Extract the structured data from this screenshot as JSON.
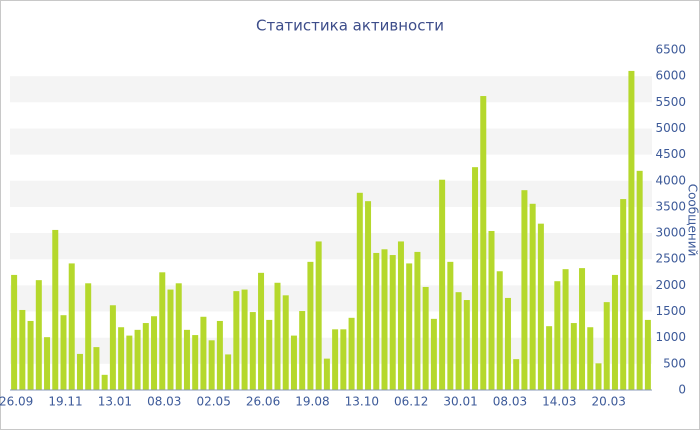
{
  "chart_data": {
    "type": "bar",
    "title": "Статистика активности",
    "y_label": "Сообщений",
    "categories": [
      "26.09",
      null,
      null,
      null,
      null,
      null,
      "19.11",
      null,
      null,
      null,
      null,
      null,
      "13.01",
      null,
      null,
      null,
      null,
      null,
      "08.03",
      null,
      null,
      null,
      null,
      null,
      "02.05",
      null,
      null,
      null,
      null,
      null,
      "26.06",
      null,
      null,
      null,
      null,
      null,
      "19.08",
      null,
      null,
      null,
      null,
      null,
      "13.10",
      null,
      null,
      null,
      null,
      null,
      "06.12",
      null,
      null,
      null,
      null,
      null,
      "30.01",
      null,
      null,
      null,
      null,
      null,
      "08.03",
      null,
      null,
      null,
      null,
      null,
      "14.03",
      null,
      null,
      null,
      null,
      null,
      "20.03",
      null,
      null,
      null,
      null,
      null
    ],
    "values": [
      2200,
      1530,
      1320,
      2100,
      1010,
      3060,
      1430,
      2420,
      690,
      2040,
      820,
      290,
      1620,
      1200,
      1040,
      1150,
      1280,
      1410,
      2250,
      1920,
      2040,
      1150,
      1050,
      1400,
      950,
      1320,
      680,
      1890,
      1920,
      1490,
      2240,
      1340,
      2050,
      1810,
      1040,
      1510,
      2450,
      2840,
      600,
      1160,
      1160,
      1380,
      3770,
      3610,
      2620,
      2690,
      2580,
      2840,
      2420,
      2640,
      1970,
      1360,
      4020,
      2450,
      1870,
      1720,
      4260,
      5620,
      3040,
      2270,
      1760,
      590,
      3820,
      3560,
      3180,
      1220,
      2080,
      2310,
      1280,
      2330,
      1200,
      510,
      1680,
      2200,
      3650,
      6100,
      4190,
      1340
    ],
    "color": "#b5d82c",
    "band_color": "#f4f4f4",
    "ylim": [
      0,
      6500
    ],
    "yticks": [
      0,
      500,
      1000,
      1500,
      2000,
      2500,
      3000,
      3500,
      4000,
      4500,
      5000,
      5500,
      6000,
      6500
    ],
    "grid": "bands"
  }
}
